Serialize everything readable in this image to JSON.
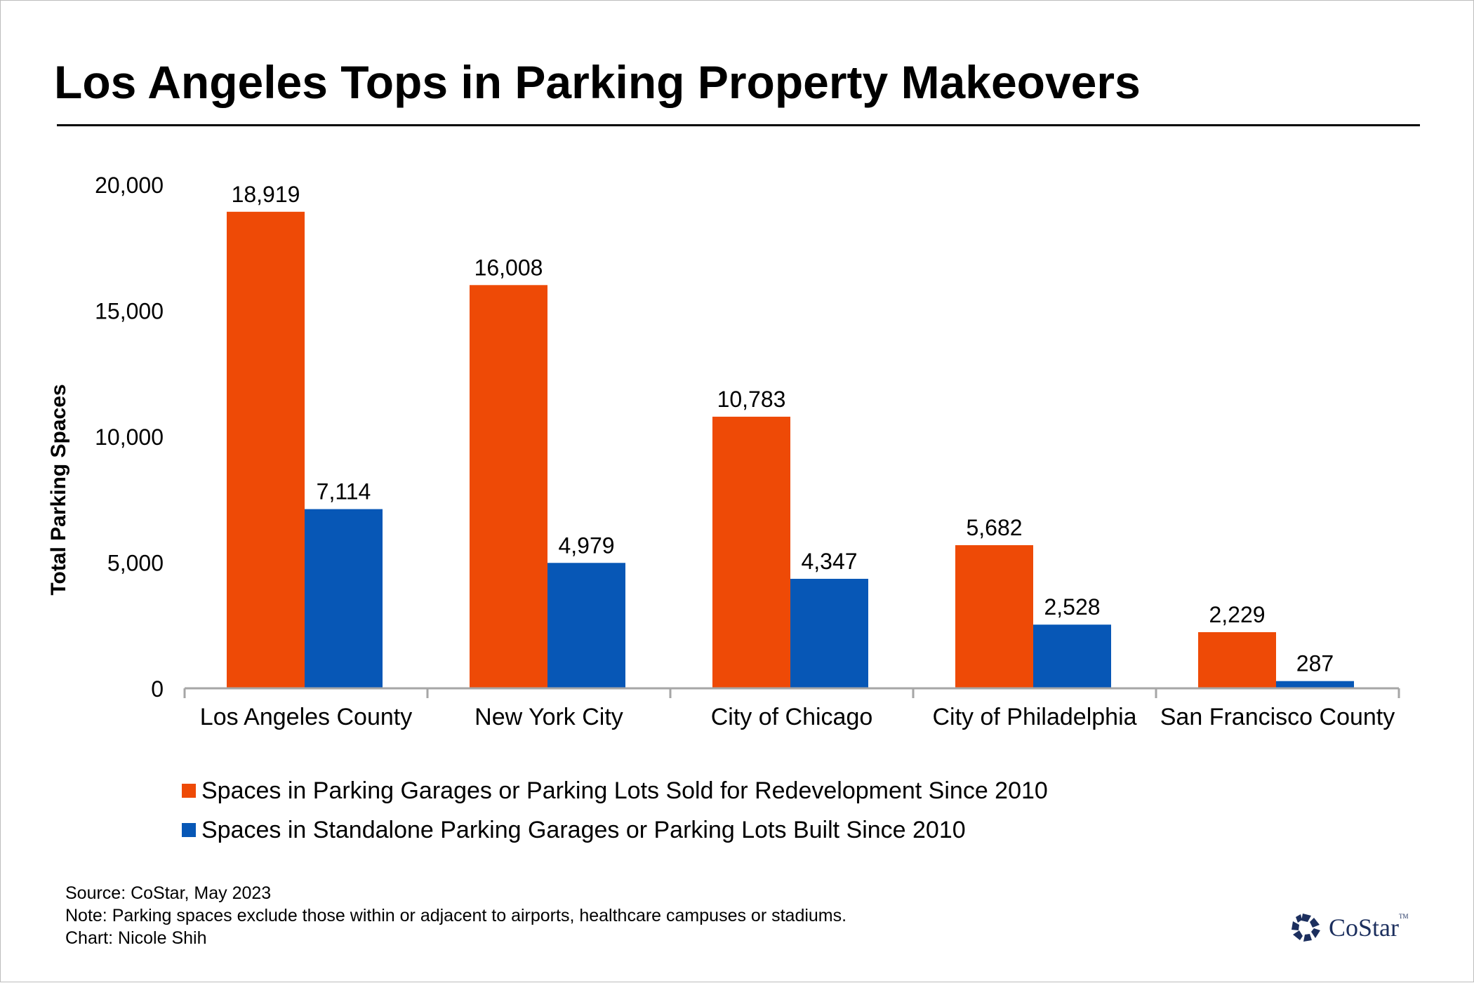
{
  "title": "Los Angeles Tops in Parking Property Makeovers",
  "colors": {
    "redevelopment": "#ee4a06",
    "built": "#0757b6",
    "axis": "#a6a6a6",
    "logo": "#1c2f5e"
  },
  "chart_data": {
    "type": "bar",
    "title": "Los Angeles Tops in Parking Property Makeovers",
    "xlabel": "",
    "ylabel": "Total Parking Spaces",
    "ylim": [
      0,
      20000
    ],
    "yticks": [
      0,
      5000,
      10000,
      15000,
      20000
    ],
    "ytick_labels": [
      "0",
      "5,000",
      "10,000",
      "15,000",
      "20,000"
    ],
    "grid": false,
    "legend_position": "bottom",
    "categories": [
      "Los Angeles County",
      "New York City",
      "City of Chicago",
      "City of Philadelphia",
      "San Francisco County"
    ],
    "series": [
      {
        "name": "Spaces in Parking Garages or Parking Lots Sold for Redevelopment Since 2010",
        "color": "#ee4a06",
        "values": [
          18919,
          16008,
          10783,
          5682,
          2229
        ],
        "labels": [
          "18,919",
          "16,008",
          "10,783",
          "5,682",
          "2,229"
        ]
      },
      {
        "name": "Spaces in Standalone Parking Garages or Parking Lots Built Since 2010",
        "color": "#0757b6",
        "values": [
          7114,
          4979,
          4347,
          2528,
          287
        ],
        "labels": [
          "7,114",
          "4,979",
          "4,347",
          "2,528",
          "287"
        ]
      }
    ]
  },
  "footer": {
    "source": "Source: CoStar, May 2023",
    "note": "Note: Parking spaces exclude those within or adjacent to airports, healthcare campuses or stadiums.",
    "credit": "Chart: Nicole Shih"
  },
  "logo": {
    "icon": "costar-star-icon",
    "name": "CoStar",
    "tm": "TM"
  }
}
